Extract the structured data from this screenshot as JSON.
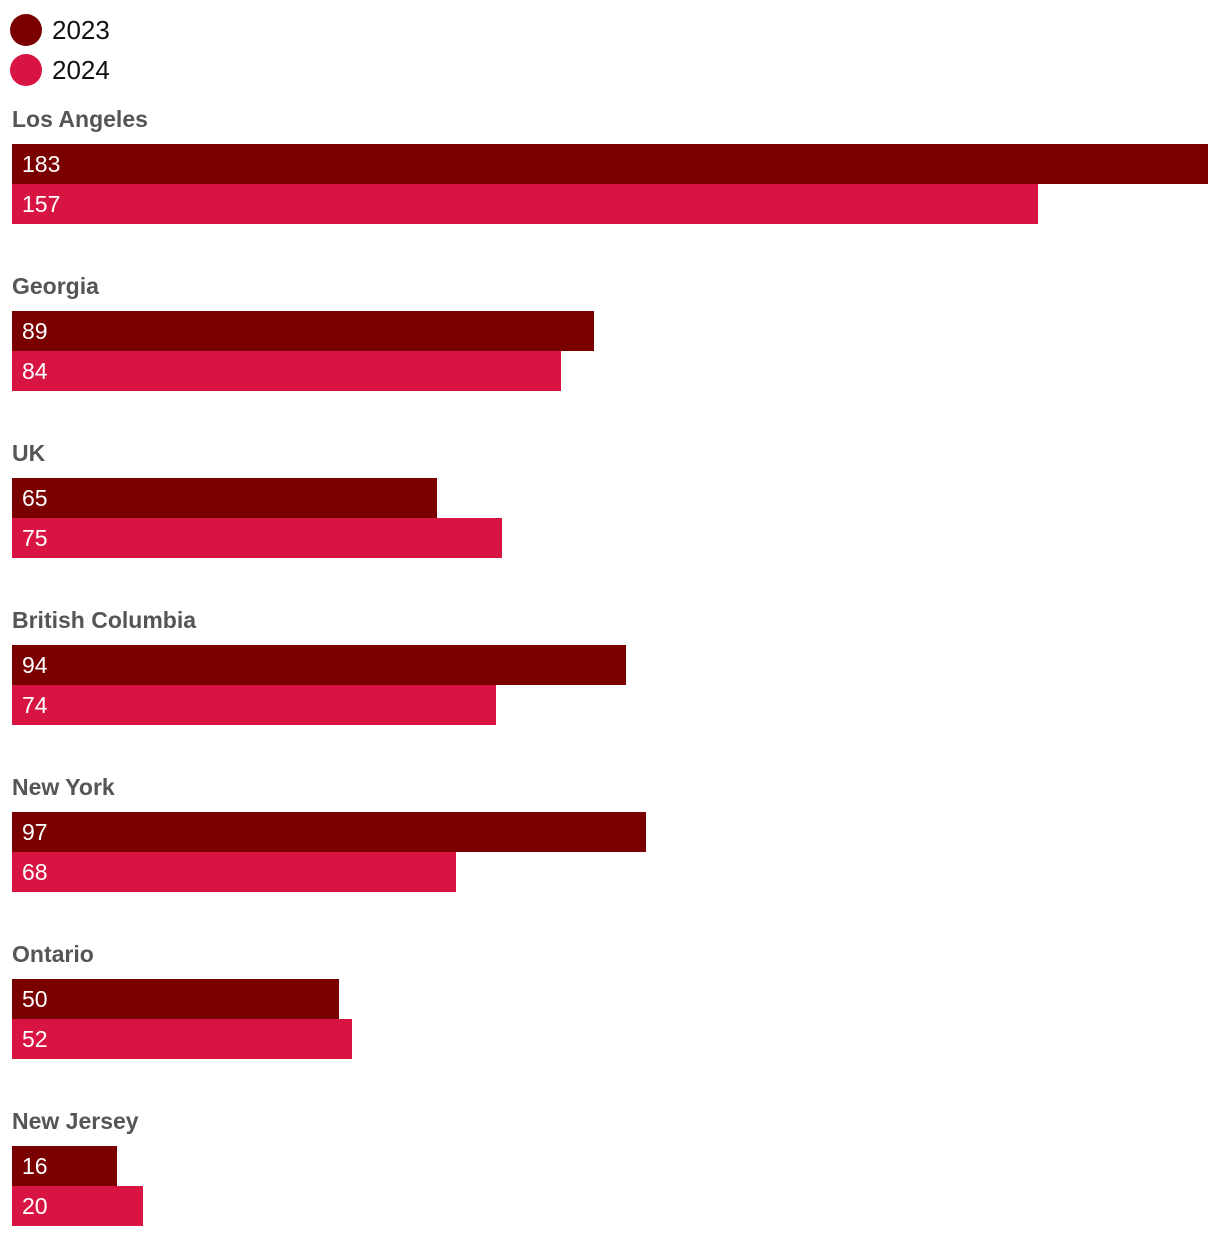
{
  "chart_data": {
    "type": "bar",
    "orientation": "horizontal",
    "categories": [
      "Los Angeles",
      "Georgia",
      "UK",
      "British Columbia",
      "New York",
      "Ontario",
      "New Jersey"
    ],
    "series": [
      {
        "name": "2023",
        "color": "#7a0000",
        "values": [
          183,
          89,
          65,
          94,
          97,
          50,
          16
        ]
      },
      {
        "name": "2024",
        "color": "#d81443",
        "values": [
          157,
          84,
          75,
          74,
          68,
          52,
          20
        ]
      }
    ],
    "xlim": [
      0,
      183
    ],
    "legend_position": "top-left",
    "grid": false,
    "data_labels": true
  }
}
